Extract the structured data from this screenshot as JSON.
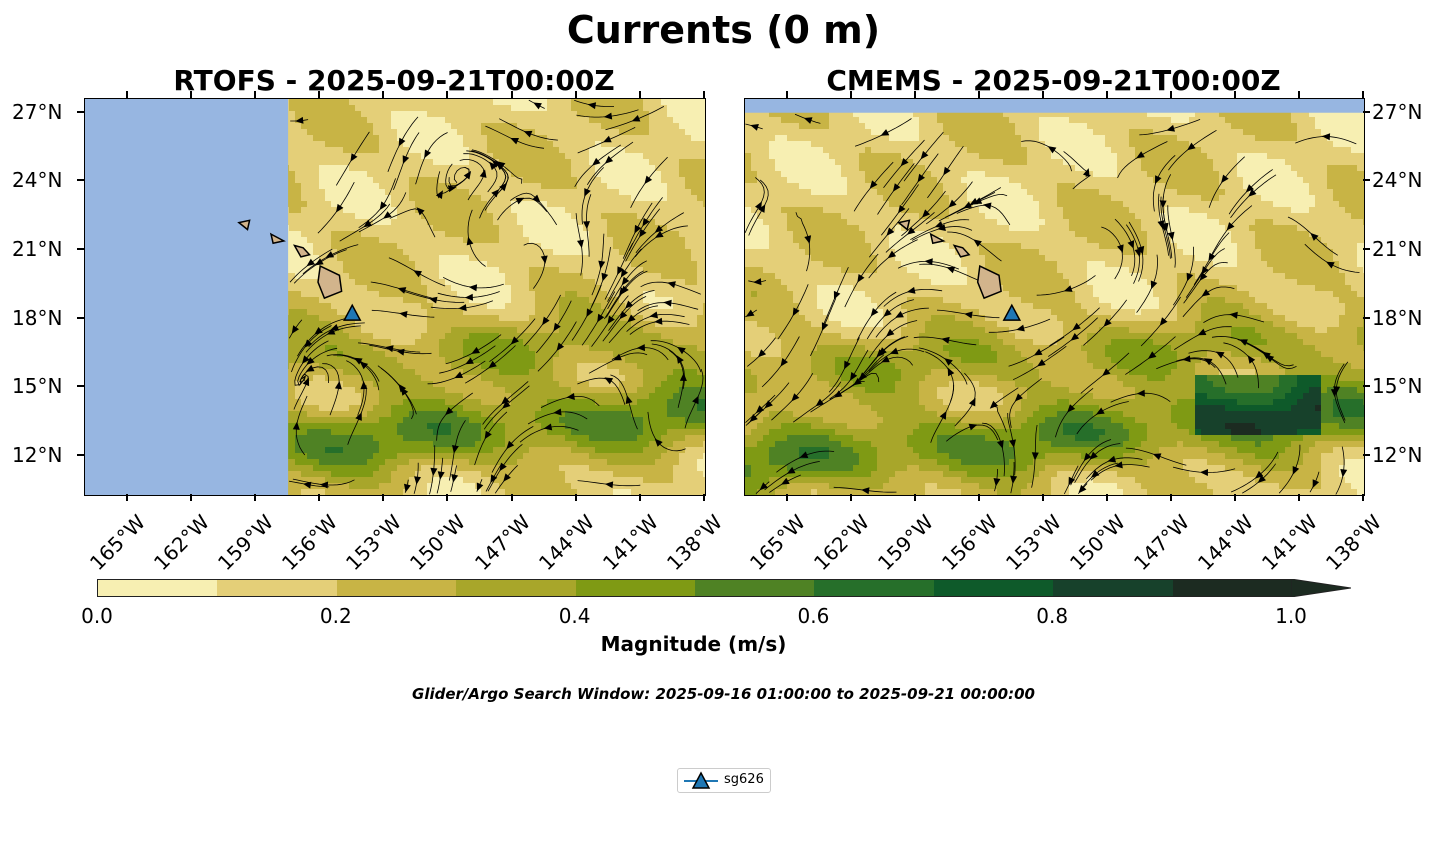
{
  "figure_title": "Currents (0 m)",
  "panels": [
    {
      "title": "RTOFS - 2025-09-21T00:00Z",
      "no_data_west_of": -157.5
    },
    {
      "title": "CMEMS - 2025-09-21T00:00Z",
      "no_data_north_of": 27.0
    }
  ],
  "lat_ticks": [
    "27°N",
    "24°N",
    "21°N",
    "18°N",
    "15°N",
    "12°N"
  ],
  "lat_values": [
    27,
    24,
    21,
    18,
    15,
    12
  ],
  "lon_ticks": [
    "165°W",
    "162°W",
    "159°W",
    "156°W",
    "153°W",
    "150°W",
    "147°W",
    "144°W",
    "141°W",
    "138°W"
  ],
  "lon_values": [
    -165,
    -162,
    -159,
    -156,
    -153,
    -150,
    -147,
    -144,
    -141,
    -138
  ],
  "extent": {
    "lon_min": -167,
    "lon_max": -138,
    "lat_min": 10.3,
    "lat_max": 27.6
  },
  "colorbar": {
    "label": "Magnitude (m/s)",
    "ticks": [
      "0.0",
      "0.2",
      "0.4",
      "0.6",
      "0.8",
      "1.0"
    ],
    "tick_values": [
      0.0,
      0.2,
      0.4,
      0.6,
      0.8,
      1.0
    ],
    "levels": [
      0.0,
      0.1,
      0.2,
      0.3,
      0.4,
      0.5,
      0.6,
      0.7,
      0.8,
      0.9,
      1.0
    ],
    "colors": [
      "#f7efb2",
      "#e4cf78",
      "#c8b445",
      "#a8a62a",
      "#7f9a14",
      "#4f8224",
      "#266f2a",
      "#0e5a2a",
      "#17412b",
      "#1c2b21"
    ],
    "extend": "max"
  },
  "search_window": "Glider/Argo Search Window: 2025-09-16 01:00:00 to 2025-09-21 00:00:00",
  "glider": {
    "name": "sg626",
    "lon": -154.5,
    "lat": 18.2,
    "color": "#1f77b4"
  },
  "colors": {
    "ocean_nodata": "#97b6e1",
    "land": "#d2b48c"
  }
}
